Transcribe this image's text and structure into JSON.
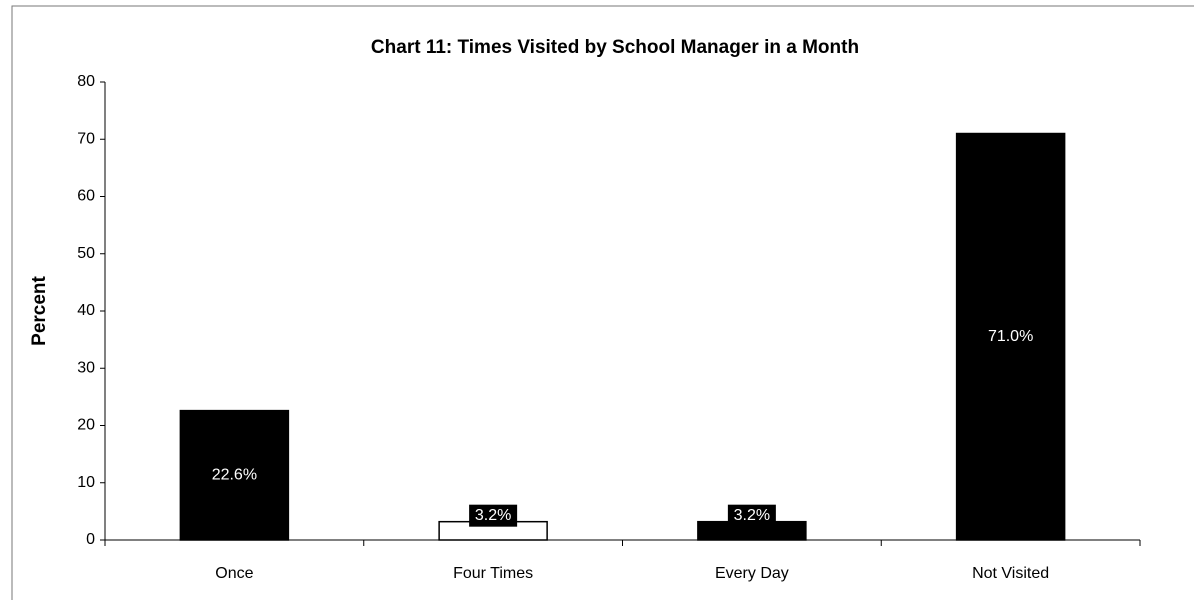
{
  "chart_data": {
    "type": "bar",
    "title": "Chart 11: Times Visited by School Manager in a Month",
    "y_label": "Percent",
    "categories": [
      "Once",
      "Four Times",
      "Every Day",
      "Not Visited"
    ],
    "values": [
      22.6,
      3.2,
      3.2,
      71.0
    ],
    "value_labels": [
      "22.6%",
      "3.2%",
      "3.2%",
      "71.0%"
    ],
    "colors": [
      "#000000",
      "#ffffff",
      "#000000",
      "#000000"
    ],
    "ylim": [
      0,
      80
    ],
    "yticks": [
      0,
      10,
      20,
      30,
      40,
      50,
      60,
      70,
      80
    ],
    "grid": false
  }
}
